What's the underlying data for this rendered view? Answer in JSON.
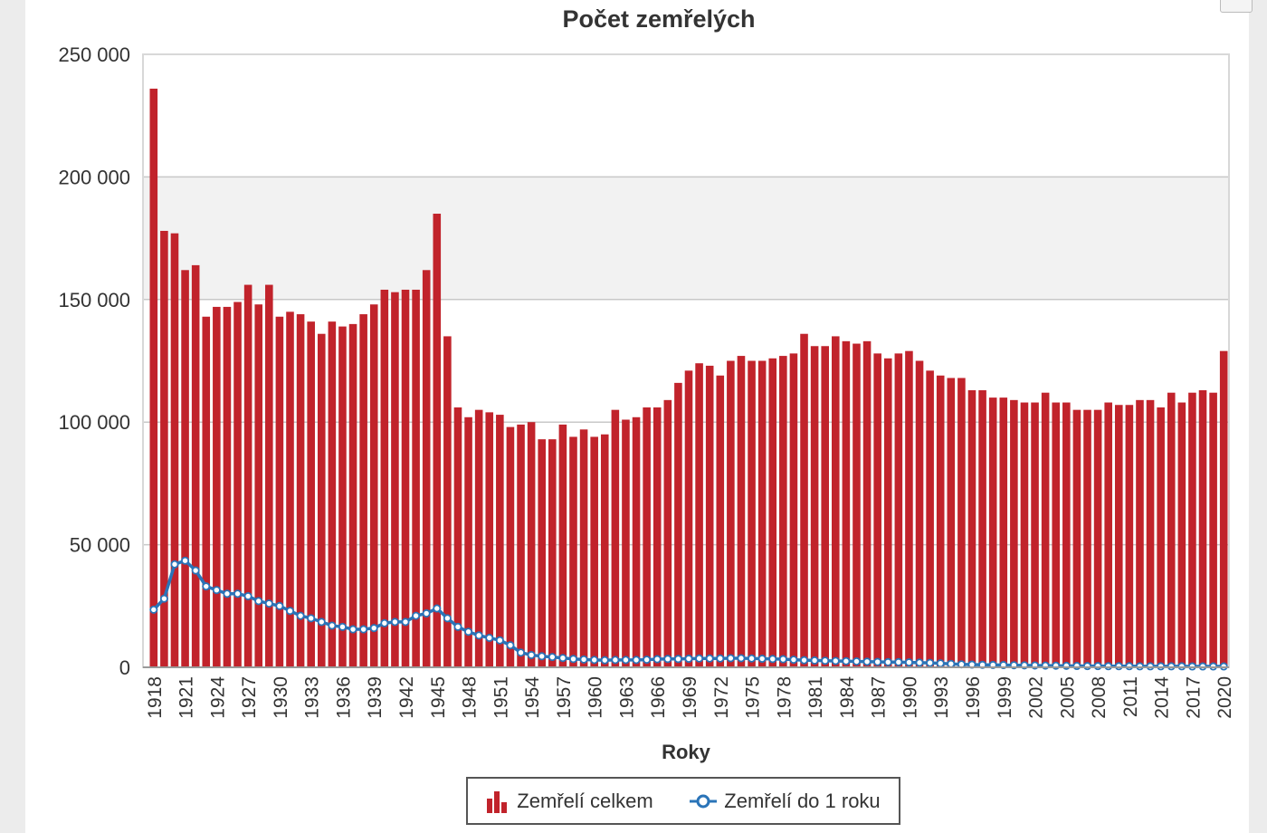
{
  "title": "Počet zemřelých",
  "colors": {
    "bar": "#c1232b",
    "line": "#2a74b8",
    "band": "#f2f2f2",
    "grid": "#c8c8c8",
    "frame": "#d8d8d8"
  },
  "legend": {
    "bar_label": "Zemřelí celkem",
    "line_label": "Zemřelí do 1 roku",
    "bar_icon": "bar-chart-icon",
    "line_icon": "line-marker-icon"
  },
  "chart_data": {
    "type": "bar",
    "title": "Počet zemřelých",
    "xlabel": "Roky",
    "ylabel": "",
    "ylim": [
      0,
      250000
    ],
    "yticks": [
      0,
      50000,
      100000,
      150000,
      200000,
      250000
    ],
    "ytick_labels": [
      "0",
      "50 000",
      "100 000",
      "150 000",
      "200 000",
      "250 000"
    ],
    "shaded_band": [
      150000,
      200000
    ],
    "x": [
      1918,
      1919,
      1920,
      1921,
      1922,
      1923,
      1924,
      1925,
      1926,
      1927,
      1928,
      1929,
      1930,
      1931,
      1932,
      1933,
      1934,
      1935,
      1936,
      1937,
      1938,
      1939,
      1940,
      1941,
      1942,
      1943,
      1944,
      1945,
      1946,
      1947,
      1948,
      1949,
      1950,
      1951,
      1952,
      1953,
      1954,
      1955,
      1956,
      1957,
      1958,
      1959,
      1960,
      1961,
      1962,
      1963,
      1964,
      1965,
      1966,
      1967,
      1968,
      1969,
      1970,
      1971,
      1972,
      1973,
      1974,
      1975,
      1976,
      1977,
      1978,
      1979,
      1980,
      1981,
      1982,
      1983,
      1984,
      1985,
      1986,
      1987,
      1988,
      1989,
      1990,
      1991,
      1992,
      1993,
      1994,
      1995,
      1996,
      1997,
      1998,
      1999,
      2000,
      2001,
      2002,
      2003,
      2004,
      2005,
      2006,
      2007,
      2008,
      2009,
      2010,
      2011,
      2012,
      2013,
      2014,
      2015,
      2016,
      2017,
      2018,
      2019,
      2020
    ],
    "x_tick_labels": [
      "1918",
      "1921",
      "1924",
      "1927",
      "1930",
      "1933",
      "1936",
      "1939",
      "1942",
      "1945",
      "1948",
      "1951",
      "1954",
      "1957",
      "1960",
      "1963",
      "1966",
      "1969",
      "1972",
      "1975",
      "1978",
      "1981",
      "1984",
      "1987",
      "1990",
      "1993",
      "1996",
      "1999",
      "2002",
      "2005",
      "2008",
      "2011",
      "2014",
      "2017",
      "2020"
    ],
    "series": [
      {
        "name": "Zemřelí celkem",
        "type": "bar",
        "values": [
          236000,
          178000,
          177000,
          162000,
          164000,
          143000,
          147000,
          147000,
          149000,
          156000,
          148000,
          156000,
          143000,
          145000,
          144000,
          141000,
          136000,
          141000,
          139000,
          140000,
          144000,
          148000,
          154000,
          153000,
          154000,
          154000,
          162000,
          185000,
          135000,
          106000,
          102000,
          105000,
          104000,
          103000,
          98000,
          99000,
          100000,
          93000,
          93000,
          99000,
          94000,
          97000,
          94000,
          95000,
          105000,
          101000,
          102000,
          106000,
          106000,
          109000,
          116000,
          121000,
          124000,
          123000,
          119000,
          125000,
          127000,
          125000,
          125000,
          126000,
          127000,
          128000,
          136000,
          131000,
          131000,
          135000,
          133000,
          132000,
          133000,
          128000,
          126000,
          128000,
          129000,
          125000,
          121000,
          119000,
          118000,
          118000,
          113000,
          113000,
          110000,
          110000,
          109000,
          108000,
          108000,
          112000,
          108000,
          108000,
          105000,
          105000,
          105000,
          108000,
          107000,
          107000,
          109000,
          109000,
          106000,
          112000,
          108000,
          112000,
          113000,
          112000,
          129000
        ]
      },
      {
        "name": "Zemřelí do 1 roku",
        "type": "line",
        "values": [
          23500,
          28000,
          42000,
          43500,
          39500,
          33000,
          31500,
          30000,
          30000,
          29000,
          27000,
          26000,
          25000,
          23000,
          21000,
          20000,
          18500,
          17000,
          16500,
          15500,
          15500,
          16000,
          18000,
          18500,
          18500,
          21000,
          22000,
          24000,
          20000,
          16500,
          14500,
          13000,
          12000,
          11000,
          9000,
          6000,
          5000,
          4500,
          4200,
          3800,
          3400,
          3200,
          3000,
          2900,
          3000,
          3000,
          3000,
          3100,
          3300,
          3400,
          3400,
          3500,
          3600,
          3600,
          3600,
          3700,
          3700,
          3600,
          3500,
          3400,
          3300,
          3100,
          2900,
          2800,
          2700,
          2600,
          2500,
          2400,
          2300,
          2200,
          2100,
          2100,
          2000,
          1900,
          1800,
          1600,
          1400,
          1200,
          1100,
          1000,
          950,
          900,
          850,
          800,
          750,
          700,
          650,
          600,
          550,
          500,
          500,
          450,
          450,
          450,
          400,
          400,
          400,
          400,
          400,
          350,
          350,
          350,
          350
        ]
      }
    ]
  }
}
